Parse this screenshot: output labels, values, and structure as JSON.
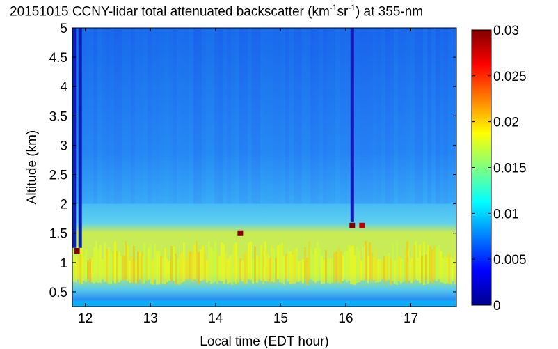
{
  "chart_data": {
    "type": "heatmap",
    "title": {
      "prefix": "20151015 CCNY-lidar total attenuated backscatter (km",
      "sup1": "-1",
      "mid": "sr",
      "sup2": "-1",
      "suffix": ") at 355-nm"
    },
    "xlabel": "Local time (EDT hour)",
    "ylabel": "Altitude (km)",
    "xlim": [
      11.8,
      17.7
    ],
    "ylim": [
      0.25,
      5.0
    ],
    "x_ticks": [
      "12",
      "13",
      "14",
      "15",
      "16",
      "17"
    ],
    "x_tick_values": [
      12,
      13,
      14,
      15,
      16,
      17
    ],
    "y_ticks": [
      "0.5",
      "1",
      "1.5",
      "2",
      "2.5",
      "3",
      "3.5",
      "4",
      "4.5",
      "5"
    ],
    "y_tick_values": [
      0.5,
      1,
      1.5,
      2,
      2.5,
      3,
      3.5,
      4,
      4.5,
      5
    ],
    "colorbar": {
      "range": [
        0,
        0.03
      ],
      "ticks": [
        "0",
        "0.005",
        "0.01",
        "0.015",
        "0.02",
        "0.025",
        "0.03"
      ],
      "tick_values": [
        0,
        0.005,
        0.01,
        0.015,
        0.02,
        0.025,
        0.03
      ],
      "colormap": "jet"
    },
    "layers": {
      "surface_band_altitude_km": [
        0.25,
        0.35
      ],
      "surface_band_value": 0.009,
      "boundary_layer_top_km": 1.2,
      "boundary_layer_value": 0.019,
      "free_troposphere_value": 0.01,
      "upper_value": 0.006
    },
    "features": [
      {
        "type": "low-signal-column",
        "x": 11.83,
        "y_from": 1.25,
        "y_to": 5.0
      },
      {
        "type": "low-signal-column",
        "x": 11.92,
        "y_from": 1.25,
        "y_to": 5.0
      },
      {
        "type": "low-signal-column",
        "x": 16.1,
        "y_from": 1.7,
        "y_to": 5.0
      },
      {
        "type": "cloud",
        "x": 11.87,
        "y": 1.2,
        "value": 0.03
      },
      {
        "type": "cloud",
        "x": 14.38,
        "y": 1.5,
        "value": 0.03
      },
      {
        "type": "cloud",
        "x": 16.1,
        "y": 1.63,
        "value": 0.03
      },
      {
        "type": "cloud",
        "x": 16.25,
        "y": 1.63,
        "value": 0.028
      }
    ]
  }
}
